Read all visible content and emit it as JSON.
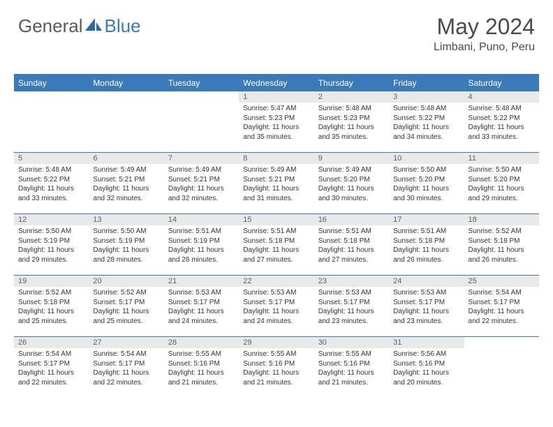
{
  "logo": {
    "word1": "General",
    "word2": "Blue"
  },
  "colors": {
    "header_bg": "#3a7ab8",
    "daynum_bg": "#e9e9e9",
    "text": "#333333"
  },
  "title": "May 2024",
  "location": "Limbani, Puno, Peru",
  "day_headers": [
    "Sunday",
    "Monday",
    "Tuesday",
    "Wednesday",
    "Thursday",
    "Friday",
    "Saturday"
  ],
  "weeks": [
    [
      {
        "n": "",
        "sr": "",
        "ss": "",
        "d1": "",
        "d2": ""
      },
      {
        "n": "",
        "sr": "",
        "ss": "",
        "d1": "",
        "d2": ""
      },
      {
        "n": "",
        "sr": "",
        "ss": "",
        "d1": "",
        "d2": ""
      },
      {
        "n": "1",
        "sr": "Sunrise: 5:47 AM",
        "ss": "Sunset: 5:23 PM",
        "d1": "Daylight: 11 hours",
        "d2": "and 35 minutes."
      },
      {
        "n": "2",
        "sr": "Sunrise: 5:48 AM",
        "ss": "Sunset: 5:23 PM",
        "d1": "Daylight: 11 hours",
        "d2": "and 35 minutes."
      },
      {
        "n": "3",
        "sr": "Sunrise: 5:48 AM",
        "ss": "Sunset: 5:22 PM",
        "d1": "Daylight: 11 hours",
        "d2": "and 34 minutes."
      },
      {
        "n": "4",
        "sr": "Sunrise: 5:48 AM",
        "ss": "Sunset: 5:22 PM",
        "d1": "Daylight: 11 hours",
        "d2": "and 33 minutes."
      }
    ],
    [
      {
        "n": "5",
        "sr": "Sunrise: 5:48 AM",
        "ss": "Sunset: 5:22 PM",
        "d1": "Daylight: 11 hours",
        "d2": "and 33 minutes."
      },
      {
        "n": "6",
        "sr": "Sunrise: 5:49 AM",
        "ss": "Sunset: 5:21 PM",
        "d1": "Daylight: 11 hours",
        "d2": "and 32 minutes."
      },
      {
        "n": "7",
        "sr": "Sunrise: 5:49 AM",
        "ss": "Sunset: 5:21 PM",
        "d1": "Daylight: 11 hours",
        "d2": "and 32 minutes."
      },
      {
        "n": "8",
        "sr": "Sunrise: 5:49 AM",
        "ss": "Sunset: 5:21 PM",
        "d1": "Daylight: 11 hours",
        "d2": "and 31 minutes."
      },
      {
        "n": "9",
        "sr": "Sunrise: 5:49 AM",
        "ss": "Sunset: 5:20 PM",
        "d1": "Daylight: 11 hours",
        "d2": "and 30 minutes."
      },
      {
        "n": "10",
        "sr": "Sunrise: 5:50 AM",
        "ss": "Sunset: 5:20 PM",
        "d1": "Daylight: 11 hours",
        "d2": "and 30 minutes."
      },
      {
        "n": "11",
        "sr": "Sunrise: 5:50 AM",
        "ss": "Sunset: 5:20 PM",
        "d1": "Daylight: 11 hours",
        "d2": "and 29 minutes."
      }
    ],
    [
      {
        "n": "12",
        "sr": "Sunrise: 5:50 AM",
        "ss": "Sunset: 5:19 PM",
        "d1": "Daylight: 11 hours",
        "d2": "and 29 minutes."
      },
      {
        "n": "13",
        "sr": "Sunrise: 5:50 AM",
        "ss": "Sunset: 5:19 PM",
        "d1": "Daylight: 11 hours",
        "d2": "and 28 minutes."
      },
      {
        "n": "14",
        "sr": "Sunrise: 5:51 AM",
        "ss": "Sunset: 5:19 PM",
        "d1": "Daylight: 11 hours",
        "d2": "and 28 minutes."
      },
      {
        "n": "15",
        "sr": "Sunrise: 5:51 AM",
        "ss": "Sunset: 5:18 PM",
        "d1": "Daylight: 11 hours",
        "d2": "and 27 minutes."
      },
      {
        "n": "16",
        "sr": "Sunrise: 5:51 AM",
        "ss": "Sunset: 5:18 PM",
        "d1": "Daylight: 11 hours",
        "d2": "and 27 minutes."
      },
      {
        "n": "17",
        "sr": "Sunrise: 5:51 AM",
        "ss": "Sunset: 5:18 PM",
        "d1": "Daylight: 11 hours",
        "d2": "and 26 minutes."
      },
      {
        "n": "18",
        "sr": "Sunrise: 5:52 AM",
        "ss": "Sunset: 5:18 PM",
        "d1": "Daylight: 11 hours",
        "d2": "and 26 minutes."
      }
    ],
    [
      {
        "n": "19",
        "sr": "Sunrise: 5:52 AM",
        "ss": "Sunset: 5:18 PM",
        "d1": "Daylight: 11 hours",
        "d2": "and 25 minutes."
      },
      {
        "n": "20",
        "sr": "Sunrise: 5:52 AM",
        "ss": "Sunset: 5:17 PM",
        "d1": "Daylight: 11 hours",
        "d2": "and 25 minutes."
      },
      {
        "n": "21",
        "sr": "Sunrise: 5:53 AM",
        "ss": "Sunset: 5:17 PM",
        "d1": "Daylight: 11 hours",
        "d2": "and 24 minutes."
      },
      {
        "n": "22",
        "sr": "Sunrise: 5:53 AM",
        "ss": "Sunset: 5:17 PM",
        "d1": "Daylight: 11 hours",
        "d2": "and 24 minutes."
      },
      {
        "n": "23",
        "sr": "Sunrise: 5:53 AM",
        "ss": "Sunset: 5:17 PM",
        "d1": "Daylight: 11 hours",
        "d2": "and 23 minutes."
      },
      {
        "n": "24",
        "sr": "Sunrise: 5:53 AM",
        "ss": "Sunset: 5:17 PM",
        "d1": "Daylight: 11 hours",
        "d2": "and 23 minutes."
      },
      {
        "n": "25",
        "sr": "Sunrise: 5:54 AM",
        "ss": "Sunset: 5:17 PM",
        "d1": "Daylight: 11 hours",
        "d2": "and 22 minutes."
      }
    ],
    [
      {
        "n": "26",
        "sr": "Sunrise: 5:54 AM",
        "ss": "Sunset: 5:17 PM",
        "d1": "Daylight: 11 hours",
        "d2": "and 22 minutes."
      },
      {
        "n": "27",
        "sr": "Sunrise: 5:54 AM",
        "ss": "Sunset: 5:17 PM",
        "d1": "Daylight: 11 hours",
        "d2": "and 22 minutes."
      },
      {
        "n": "28",
        "sr": "Sunrise: 5:55 AM",
        "ss": "Sunset: 5:16 PM",
        "d1": "Daylight: 11 hours",
        "d2": "and 21 minutes."
      },
      {
        "n": "29",
        "sr": "Sunrise: 5:55 AM",
        "ss": "Sunset: 5:16 PM",
        "d1": "Daylight: 11 hours",
        "d2": "and 21 minutes."
      },
      {
        "n": "30",
        "sr": "Sunrise: 5:55 AM",
        "ss": "Sunset: 5:16 PM",
        "d1": "Daylight: 11 hours",
        "d2": "and 21 minutes."
      },
      {
        "n": "31",
        "sr": "Sunrise: 5:56 AM",
        "ss": "Sunset: 5:16 PM",
        "d1": "Daylight: 11 hours",
        "d2": "and 20 minutes."
      },
      {
        "n": "",
        "sr": "",
        "ss": "",
        "d1": "",
        "d2": ""
      }
    ]
  ]
}
